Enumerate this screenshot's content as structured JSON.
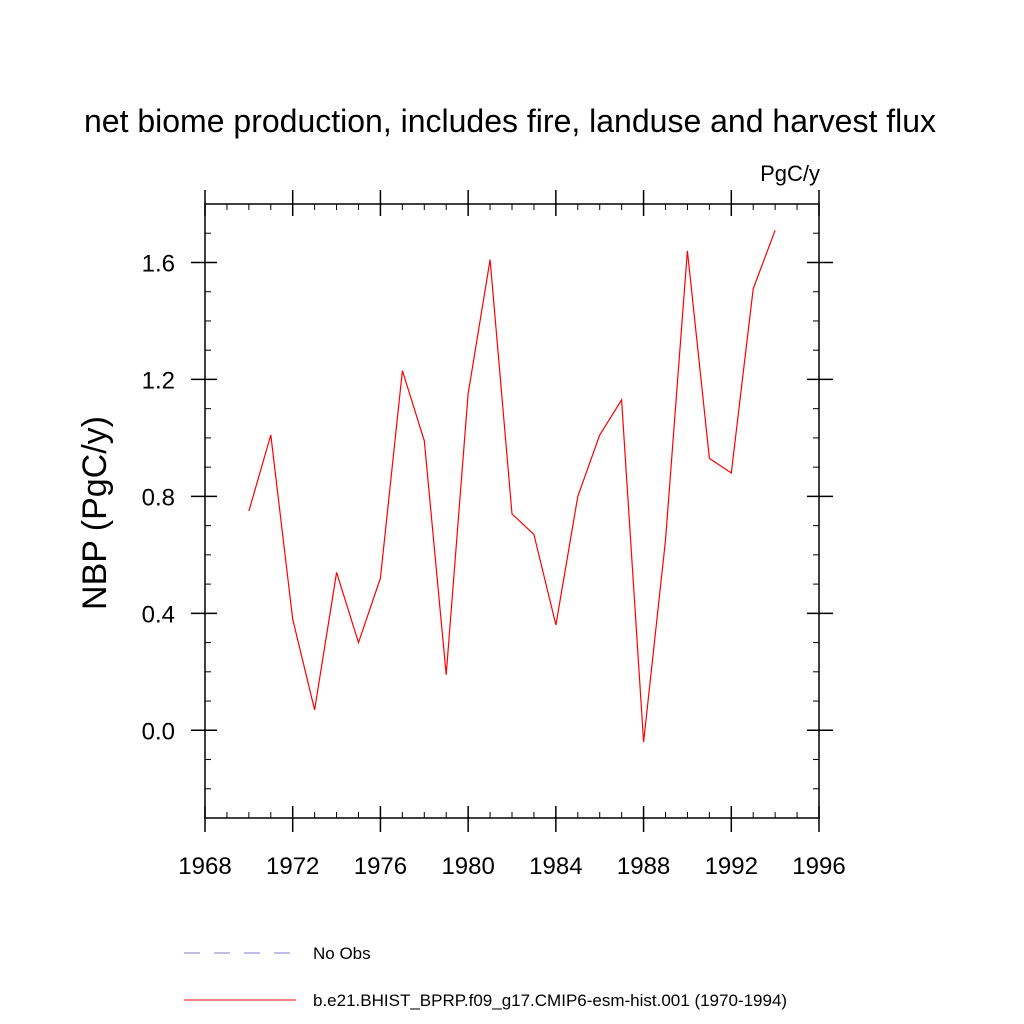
{
  "chart_data": {
    "type": "line",
    "title": "net biome production, includes fire, landuse and harvest flux",
    "units_label": "PgC/y",
    "xlabel": "",
    "ylabel": "NBP  (PgC/y)",
    "xlim": [
      1968,
      1996
    ],
    "ylim": [
      -0.3,
      1.8
    ],
    "x_ticks": [
      1968,
      1972,
      1976,
      1980,
      1984,
      1988,
      1992,
      1996
    ],
    "x_tick_labels": [
      "1968",
      "1972",
      "1976",
      "1980",
      "1984",
      "1988",
      "1992",
      "1996"
    ],
    "y_ticks": [
      0.0,
      0.4,
      0.8,
      1.2,
      1.6
    ],
    "y_tick_labels": [
      "0.0",
      "0.4",
      "0.8",
      "1.2",
      "1.6"
    ],
    "x_minor_step": 1,
    "y_minor_step": 0.1,
    "grid": false,
    "legend_position": "bottom",
    "series": [
      {
        "name": "b.e21.BHIST_BPRP.f09_g17.CMIP6-esm-hist.001 (1970-1994)",
        "color": "#ff0000",
        "style": "solid",
        "x": [
          1970,
          1971,
          1972,
          1973,
          1974,
          1975,
          1976,
          1977,
          1978,
          1979,
          1980,
          1981,
          1982,
          1983,
          1984,
          1985,
          1986,
          1987,
          1988,
          1989,
          1990,
          1991,
          1992,
          1993,
          1994
        ],
        "values": [
          0.75,
          1.01,
          0.38,
          0.07,
          0.54,
          0.3,
          0.52,
          1.23,
          0.99,
          0.19,
          1.15,
          1.61,
          0.74,
          0.67,
          0.36,
          0.8,
          1.01,
          1.13,
          -0.04,
          0.65,
          1.64,
          0.93,
          0.88,
          1.51,
          1.71
        ]
      }
    ],
    "legend": [
      {
        "label": "No Obs",
        "color": "#7f7fcc",
        "style": "dashed"
      },
      {
        "label": "b.e21.BHIST_BPRP.f09_g17.CMIP6-esm-hist.001 (1970-1994)",
        "color": "#ff0000",
        "style": "solid"
      }
    ]
  }
}
